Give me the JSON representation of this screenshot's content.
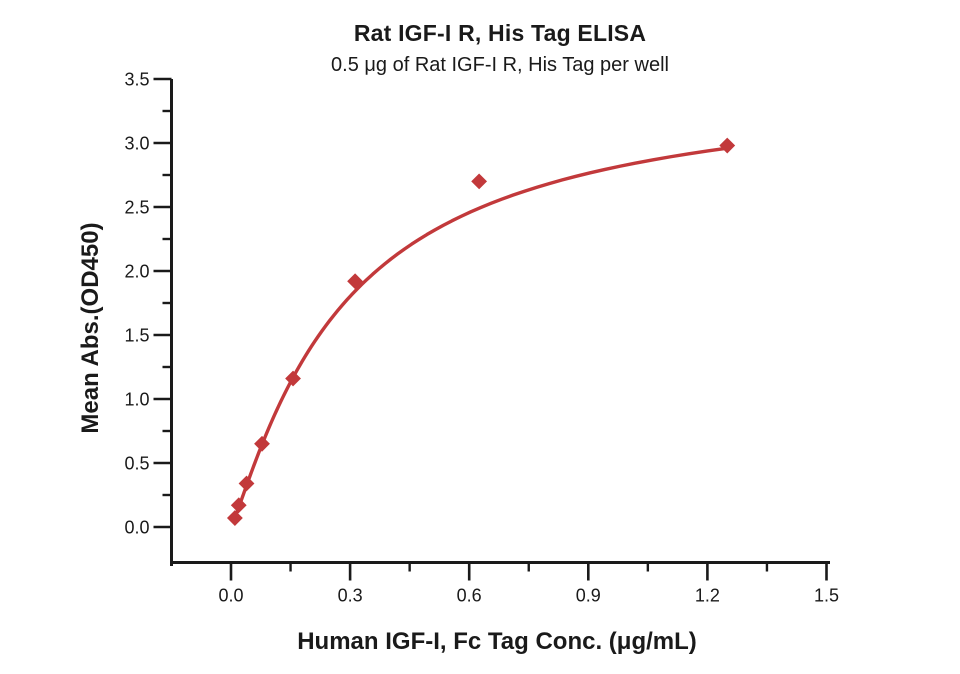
{
  "chart_data": {
    "type": "scatter",
    "title": "Rat IGF-I R, His Tag ELISA",
    "subtitle": "0.5 μg of Rat IGF-I R, His Tag per well",
    "xlabel": "Human IGF-I, Fc Tag Conc. (μg/mL)",
    "ylabel": "Mean Abs.(OD450)",
    "series_name": "Human IGF-I, Fc Tag",
    "x": [
      0.0098,
      0.0195,
      0.0391,
      0.0781,
      0.1563,
      0.3125,
      0.625,
      1.25
    ],
    "y": [
      0.07,
      0.17,
      0.34,
      0.65,
      1.16,
      1.92,
      2.7,
      2.98
    ],
    "xlim": [
      -0.149,
      1.51
    ],
    "ylim": [
      -0.27,
      3.5
    ],
    "xticks": [
      0.0,
      0.3,
      0.6,
      0.9,
      1.2,
      1.5
    ],
    "xtick_labels": [
      "0.0",
      "0.3",
      "0.6",
      "0.9",
      "1.2",
      "1.5"
    ],
    "xminor_ticks": [
      0.15,
      0.45,
      0.75,
      1.05,
      1.35
    ],
    "yticks": [
      0.0,
      0.5,
      1.0,
      1.5,
      2.0,
      2.5,
      3.0,
      3.5
    ],
    "ytick_labels": [
      "0.0",
      "0.5",
      "1.0",
      "1.5",
      "2.0",
      "2.5",
      "3.0",
      "3.5"
    ],
    "yminor_ticks": [
      0.25,
      0.75,
      1.25,
      1.75,
      2.25,
      2.75,
      3.25
    ],
    "marker": "diamond",
    "grid": false,
    "legend": "none",
    "fit_curve": {
      "model": "4PL",
      "bottom": 0.0,
      "top": 3.5,
      "ec50": 0.285,
      "hill": 1.15,
      "x_start": 0.0098,
      "x_end": 1.25
    },
    "colors": {
      "accent": "#c2393b",
      "axis": "#1a1a1a",
      "text": "#1a1a1a",
      "background": "#ffffff"
    }
  }
}
